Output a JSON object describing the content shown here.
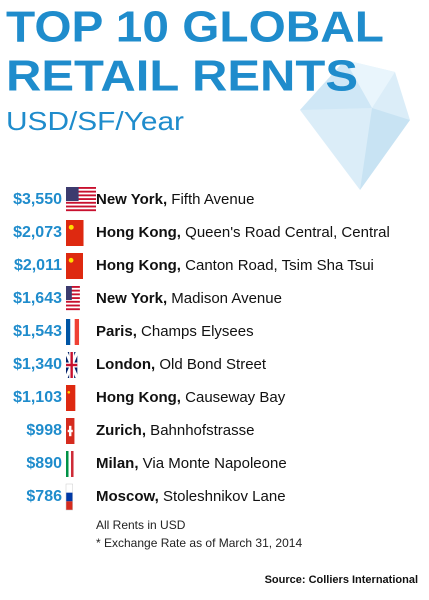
{
  "chart_data": {
    "type": "bar",
    "title": [
      "TOP 10 GLOBAL",
      "RETAIL RENTS"
    ],
    "subtitle": "USD/SF/Year",
    "categories": [
      "New York,",
      "Hong Kong,",
      "Hong Kong,",
      "New York,",
      "Paris,",
      "London,",
      "Hong Kong,",
      "Zurich,",
      "Milan,",
      "Moscow,"
    ],
    "locations": [
      "Fifth Avenue",
      "Queen's Road Central, Central",
      "Canton Road, Tsim Sha Tsui",
      "Madison Avenue",
      "Champs Elysees",
      "Old Bond Street",
      "Causeway Bay",
      "Bahnhofstrasse",
      "Via Monte Napoleone",
      "Stoleshnikov Lane"
    ],
    "values": [
      3550,
      2073,
      2011,
      1643,
      1543,
      1340,
      1103,
      998,
      890,
      786
    ],
    "value_labels": [
      "$3,550",
      "$2,073",
      "$2,011",
      "$1,643",
      "$1,543",
      "$1,340",
      "$1,103",
      "$998",
      "$890",
      "$786"
    ],
    "flags": [
      "us",
      "cn",
      "cn",
      "us",
      "fr",
      "uk",
      "cn",
      "ch",
      "it",
      "ru"
    ],
    "color": "#1f8ccc",
    "notes": [
      "All Rents in USD",
      "*  Exchange Rate as of March 31, 2014"
    ],
    "source": "Source: Colliers International"
  }
}
